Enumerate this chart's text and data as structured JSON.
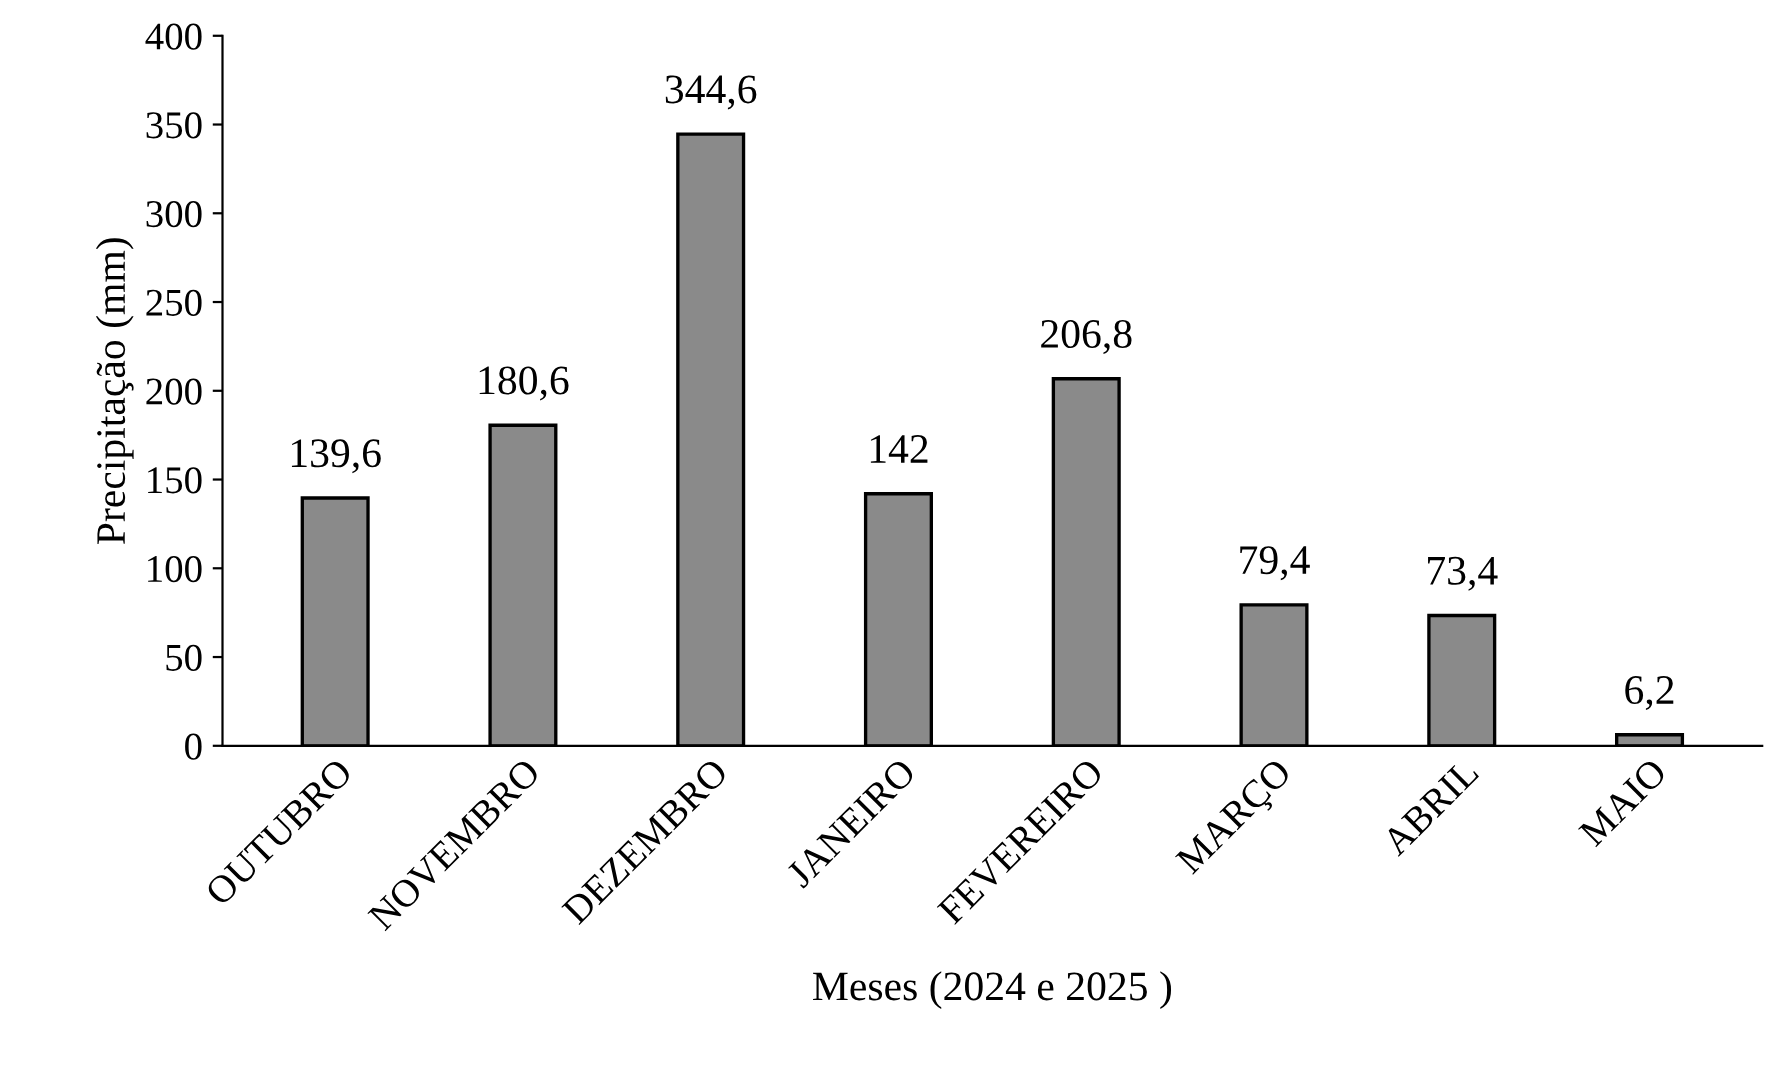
{
  "chart_data": {
    "type": "bar",
    "xlabel": "Meses (2024 e 2025 )",
    "ylabel": "Precipitação (mm)",
    "categories": [
      "OUTUBRO",
      "NOVEMBRO",
      "DEZEMBRO",
      "JANEIRO",
      "FEVEREIRO",
      "MARÇO",
      "ABRIL",
      "MAIO"
    ],
    "values": [
      139.6,
      180.6,
      344.6,
      142,
      206.8,
      79.4,
      73.4,
      6.2
    ],
    "value_labels": [
      "139,6",
      "180,6",
      "344,6",
      "142",
      "206,8",
      "79,4",
      "73,4",
      "6,2"
    ],
    "color": "#8a8a8a",
    "ylim": [
      0,
      400
    ],
    "yticks": [
      0,
      50,
      100,
      150,
      200,
      250,
      300,
      350,
      400
    ],
    "grid": false,
    "legend": false
  }
}
